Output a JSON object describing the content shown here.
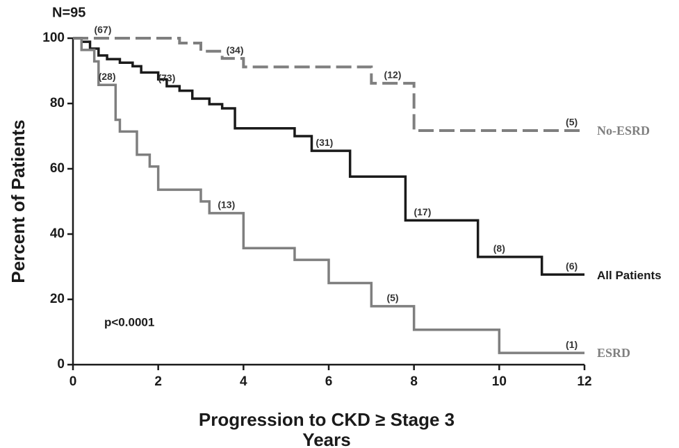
{
  "chart_data": {
    "type": "step",
    "sample_size": "N=95",
    "p_value": "p<0.0001",
    "ylabel": "Percent of Patients",
    "xlabel": [
      "Progression to CKD ≥ Stage 3",
      "Years"
    ],
    "xlim": [
      0,
      12
    ],
    "xticks": [
      0,
      2,
      4,
      6,
      8,
      10,
      12
    ],
    "ylim": [
      0,
      100
    ],
    "yticks": [
      0,
      20,
      40,
      60,
      80,
      100
    ],
    "series": [
      {
        "name": "No-ESRD",
        "color": "#7f7f7f",
        "dashed": true,
        "x": [
          0,
          2.5,
          3.0,
          3.5,
          4.0,
          7.0,
          8.0,
          12
        ],
        "values": [
          100,
          98.5,
          96,
          93.8,
          91.2,
          86.2,
          71.7,
          71.7
        ],
        "at_risk": [
          {
            "x": 0.7,
            "label": "(67)"
          },
          {
            "x": 3.8,
            "label": "(34)"
          },
          {
            "x": 7.5,
            "label": "(12)"
          },
          {
            "x": 11.7,
            "label": "(5)"
          }
        ]
      },
      {
        "name": "All Patients",
        "color": "#1a1a1a",
        "dashed": false,
        "x": [
          0,
          0.2,
          0.4,
          0.6,
          0.8,
          1.1,
          1.4,
          1.6,
          2.0,
          2.2,
          2.5,
          2.8,
          3.2,
          3.5,
          3.8,
          5.2,
          5.6,
          6.5,
          7.8,
          9.5,
          11.0,
          12
        ],
        "values": [
          100,
          98.9,
          96.8,
          94.7,
          93.6,
          92.5,
          91.4,
          89.5,
          87.4,
          85.3,
          83.9,
          81.5,
          79.8,
          78.5,
          72.4,
          70,
          65.5,
          57.6,
          44.2,
          33,
          27.6,
          27.6
        ],
        "at_risk": [
          {
            "x": 2.2,
            "label": "(73)"
          },
          {
            "x": 5.9,
            "label": "(31)"
          },
          {
            "x": 8.2,
            "label": "(17)"
          },
          {
            "x": 10.0,
            "label": "(8)"
          },
          {
            "x": 11.7,
            "label": "(6)"
          }
        ]
      },
      {
        "name": "ESRD",
        "color": "#7f7f7f",
        "dashed": false,
        "x": [
          0,
          0.2,
          0.5,
          0.6,
          1.0,
          1.1,
          1.5,
          1.8,
          2.0,
          3.0,
          3.2,
          4.0,
          5.2,
          6.0,
          7.0,
          8.0,
          10.0,
          12
        ],
        "values": [
          100,
          96.4,
          92.9,
          85.7,
          75,
          71.4,
          64.3,
          60.7,
          53.6,
          50,
          46.4,
          35.7,
          32.1,
          25,
          17.9,
          10.7,
          3.6,
          3.6
        ],
        "at_risk": [
          {
            "x": 0.8,
            "label": "(28)"
          },
          {
            "x": 3.6,
            "label": "(13)"
          },
          {
            "x": 7.5,
            "label": "(5)"
          },
          {
            "x": 11.7,
            "label": "(1)"
          }
        ]
      }
    ]
  }
}
